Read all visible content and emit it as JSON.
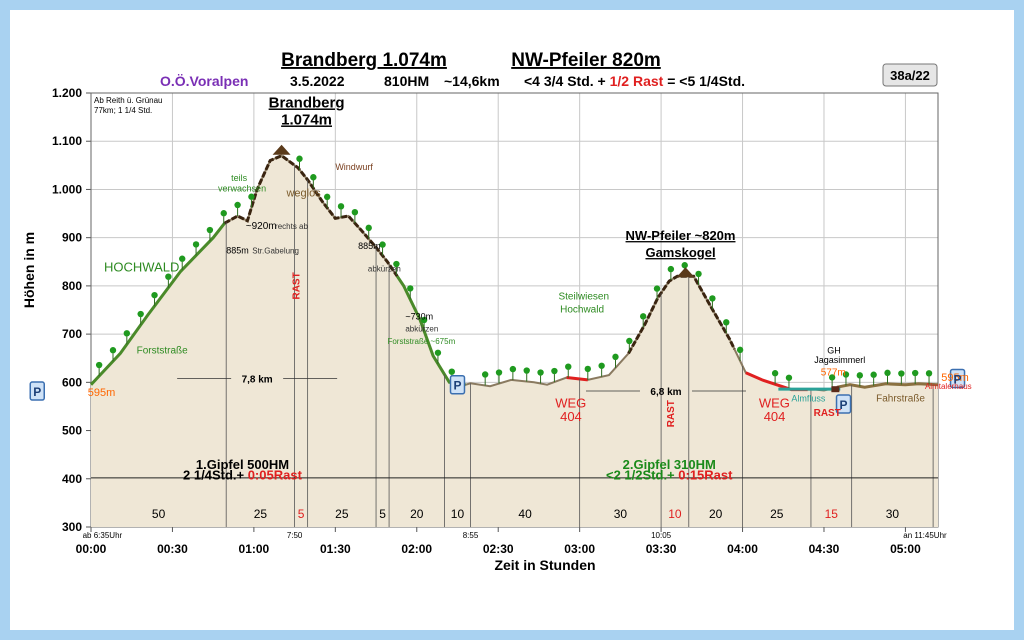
{
  "header": {
    "title_left": "Brandberg 1.074m",
    "title_right": "NW-Pfeiler 820m",
    "region": "O.Ö.Voralpen",
    "date": "3.5.2022",
    "hm": "810HM",
    "distance": "~14,6km",
    "time_main": "<4 3/4 Std. + ",
    "time_rest": "1/2 Rast",
    "time_total": " = <5 1/4Std.",
    "badge": "38a/22"
  },
  "approach_note": [
    "Ab Reith ü. Grünau",
    "77km; 1 1/4 Std."
  ],
  "chart_data": {
    "type": "area",
    "xlabel": "Zeit in Stunden",
    "ylabel": "Höhen in m",
    "xlim": [
      0,
      5.2
    ],
    "ylim": [
      300,
      1200
    ],
    "x_ticks": [
      "00:00",
      "00:30",
      "01:00",
      "01:30",
      "02:00",
      "02:30",
      "03:00",
      "03:30",
      "04:00",
      "04:30",
      "05:00"
    ],
    "y_ticks": [
      "300",
      "400",
      "500",
      "600",
      "700",
      "800",
      "900",
      "1.000",
      "1.100",
      "1.200"
    ],
    "profile": {
      "x": [
        0,
        0.18,
        0.35,
        0.55,
        0.75,
        0.82,
        0.9,
        0.96,
        1.02,
        1.1,
        1.17,
        1.27,
        1.33,
        1.42,
        1.5,
        1.58,
        1.66,
        1.75,
        1.82,
        1.92,
        2.02,
        2.1,
        2.2,
        2.3,
        2.33,
        2.45,
        2.58,
        2.72,
        2.8,
        2.92,
        3.05,
        3.18,
        3.3,
        3.4,
        3.48,
        3.55,
        3.6,
        3.7,
        3.8,
        3.92,
        4.02,
        4.12,
        4.3,
        4.45,
        4.5,
        4.58,
        4.66,
        4.75,
        4.88,
        5.0,
        5.08,
        5.2
      ],
      "y": [
        595,
        660,
        740,
        830,
        900,
        930,
        945,
        935,
        1000,
        1060,
        1070,
        1045,
        1020,
        975,
        940,
        945,
        915,
        880,
        850,
        800,
        730,
        655,
        600,
        595,
        598,
        592,
        605,
        600,
        595,
        610,
        605,
        615,
        660,
        720,
        775,
        810,
        820,
        820,
        760,
        690,
        620,
        605,
        585,
        585,
        583,
        590,
        595,
        590,
        597,
        595,
        597,
        595
      ]
    },
    "path_segments": [
      {
        "type": "Forststraße",
        "x": [
          0,
          0.82
        ]
      },
      {
        "type": "weglos",
        "x": [
          0.82,
          1.88
        ]
      },
      {
        "type": "Forststraße",
        "x": [
          1.88,
          2.3
        ]
      },
      {
        "type": "WEG 404",
        "x": [
          2.92,
          3.05
        ]
      },
      {
        "type": "weglos",
        "x": [
          3.3,
          3.95
        ]
      },
      {
        "type": "WEG 404",
        "x": [
          4.02,
          4.4
        ]
      },
      {
        "type": "Fahrstraße",
        "x": [
          4.58,
          5.2
        ]
      }
    ],
    "peaks": [
      {
        "name": "Brandberg",
        "label": "Brandberg",
        "sublabel": "1.074m",
        "x": 1.17,
        "y": 1074
      },
      {
        "name": "NW-Pfeiler",
        "label": "NW-Pfeiler ~820m",
        "sublabel": "Gamskogel",
        "x": 3.65,
        "y": 820
      }
    ],
    "annotations": [
      {
        "text": "HOCHWALD",
        "x": 0.08,
        "y": 830,
        "color": "#2e8b22",
        "size": 13
      },
      {
        "text": "Forststraße",
        "x": 0.28,
        "y": 660,
        "color": "#2e8b22",
        "size": 10
      },
      {
        "text": "teils",
        "x": 0.86,
        "y": 1018,
        "color": "#2e8b22",
        "size": 9
      },
      {
        "text": "verwachsen",
        "x": 0.78,
        "y": 996,
        "color": "#2e8b22",
        "size": 9
      },
      {
        "text": "weglos",
        "x": 1.2,
        "y": 985,
        "color": "#7a5a2a",
        "size": 11
      },
      {
        "text": "Windwurf",
        "x": 1.5,
        "y": 1040,
        "color": "#7a4020",
        "size": 9
      },
      {
        "text": "~920m",
        "x": 0.95,
        "y": 918,
        "color": "#000000",
        "size": 10
      },
      {
        "text": "rechts ab",
        "x": 1.13,
        "y": 918,
        "color": "#333333",
        "size": 8
      },
      {
        "text": "885m",
        "x": 0.83,
        "y": 867,
        "color": "#000000",
        "size": 9
      },
      {
        "text": "Str.Gabelung",
        "x": 0.99,
        "y": 867,
        "color": "#333333",
        "size": 8
      },
      {
        "text": "885m",
        "x": 1.64,
        "y": 877,
        "color": "#000000",
        "size": 9
      },
      {
        "text": "abkürzen",
        "x": 1.7,
        "y": 830,
        "color": "#333333",
        "size": 8
      },
      {
        "text": "~730m",
        "x": 1.93,
        "y": 730,
        "color": "#000000",
        "size": 9
      },
      {
        "text": "abkürzen",
        "x": 1.93,
        "y": 705,
        "color": "#333333",
        "size": 8
      },
      {
        "text": "Forststraße ~675m",
        "x": 1.82,
        "y": 680,
        "color": "#2e8b22",
        "size": 8
      },
      {
        "text": "Steilwiesen",
        "x": 2.87,
        "y": 772,
        "color": "#2e8b22",
        "size": 10
      },
      {
        "text": "Hochwald",
        "x": 2.88,
        "y": 745,
        "color": "#2e8b22",
        "size": 10
      },
      {
        "text": "WEG",
        "x": 2.85,
        "y": 548,
        "color": "#e02020",
        "size": 13
      },
      {
        "text": "404",
        "x": 2.88,
        "y": 520,
        "color": "#e02020",
        "size": 13
      },
      {
        "text": "WEG",
        "x": 4.1,
        "y": 548,
        "color": "#e02020",
        "size": 13
      },
      {
        "text": "404",
        "x": 4.13,
        "y": 520,
        "color": "#e02020",
        "size": 13
      },
      {
        "text": "GH",
        "x": 4.52,
        "y": 660,
        "color": "#000000",
        "size": 9
      },
      {
        "text": "Jagasimmerl",
        "x": 4.44,
        "y": 640,
        "color": "#000000",
        "size": 9
      },
      {
        "text": "577m",
        "x": 4.48,
        "y": 614,
        "color": "#ff6600",
        "size": 10
      },
      {
        "text": "Almfluss",
        "x": 4.3,
        "y": 560,
        "color": "#2aa198",
        "size": 9
      },
      {
        "text": "Fahrstraße",
        "x": 4.82,
        "y": 560,
        "color": "#7a5a2a",
        "size": 10
      },
      {
        "text": "Almtalerhaus",
        "x": 5.12,
        "y": 586,
        "color": "#e02020",
        "size": 8
      },
      {
        "text": "595m",
        "x": -0.02,
        "y": 572,
        "color": "#ff6600",
        "size": 11
      },
      {
        "text": "595m",
        "x": 5.22,
        "y": 603,
        "color": "#ff6600",
        "size": 11
      }
    ],
    "distances": [
      {
        "label": "7,8 km",
        "x": 1.02,
        "y": 608
      },
      {
        "label": "6,8 km",
        "x": 3.53,
        "y": 582
      }
    ],
    "rasts": [
      {
        "label": "RAST",
        "x": 1.28
      },
      {
        "label": "RAST",
        "x": 3.58
      },
      {
        "label": "RAST",
        "x": 4.52
      }
    ],
    "section_summaries": [
      {
        "line1": "1.Gipfel 500HM",
        "line2a": "2 1/4Std.+ ",
        "line2b": "0:05Rast",
        "color": "#000000",
        "x": 0.93
      },
      {
        "line1": "2.Gipfel  310HM",
        "line2a": "<2 1/2Std.+ ",
        "line2b": "0:15Rast",
        "color": "#1a8a1a",
        "x": 3.55
      }
    ],
    "segment_minutes": [
      {
        "label": "50",
        "from": 0,
        "to": 0.83,
        "color": "#000000"
      },
      {
        "label": "25",
        "from": 0.83,
        "to": 1.25,
        "color": "#000000"
      },
      {
        "label": "5",
        "from": 1.25,
        "to": 1.33,
        "color": "#e02020"
      },
      {
        "label": "25",
        "from": 1.33,
        "to": 1.75,
        "color": "#000000"
      },
      {
        "label": "5",
        "from": 1.75,
        "to": 1.83,
        "color": "#000000"
      },
      {
        "label": "20",
        "from": 1.83,
        "to": 2.17,
        "color": "#000000"
      },
      {
        "label": "10",
        "from": 2.17,
        "to": 2.33,
        "color": "#000000"
      },
      {
        "label": "40",
        "from": 2.33,
        "to": 3.0,
        "color": "#000000"
      },
      {
        "label": "30",
        "from": 3.0,
        "to": 3.5,
        "color": "#000000"
      },
      {
        "label": "10",
        "from": 3.5,
        "to": 3.67,
        "color": "#e02020"
      },
      {
        "label": "20",
        "from": 3.67,
        "to": 4.0,
        "color": "#000000"
      },
      {
        "label": "25",
        "from": 4.0,
        "to": 4.42,
        "color": "#000000"
      },
      {
        "label": "15",
        "from": 4.42,
        "to": 4.67,
        "color": "#e02020"
      },
      {
        "label": "30",
        "from": 4.67,
        "to": 5.17,
        "color": "#000000"
      }
    ],
    "clock_marks": [
      {
        "label": "ab 6:35Uhr",
        "x": 0.07
      },
      {
        "label": "7:50",
        "x": 1.25
      },
      {
        "label": "8:55",
        "x": 2.33
      },
      {
        "label": "10:05",
        "x": 3.5
      },
      {
        "label": "an 11:45Uhr",
        "x": 5.12
      }
    ],
    "parking": [
      {
        "label": "P",
        "x": -0.33,
        "y": 582
      },
      {
        "label": "P",
        "x": 2.25,
        "y": 595
      },
      {
        "label": "P",
        "x": 4.62,
        "y": 555
      },
      {
        "label": "P",
        "x": 5.32,
        "y": 608
      }
    ],
    "colors": {
      "fill": "#efe7d6",
      "forest_road": "#4a8a2a",
      "trackless": "#3a2410",
      "trail": "#e02020",
      "road": "#8a7040",
      "tree": "#1f9a1f",
      "parking": "#3b6fb0"
    }
  }
}
